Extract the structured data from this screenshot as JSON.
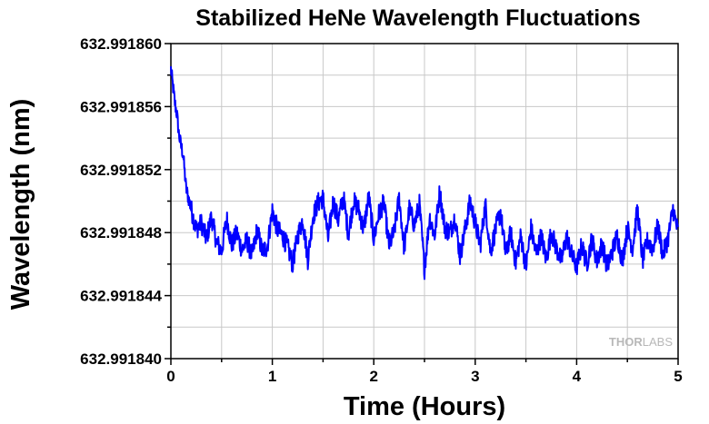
{
  "chart_data": {
    "type": "line",
    "title": "Stabilized HeNe Wavelength Fluctuations",
    "xlabel": "Time (Hours)",
    "ylabel": "Wavelength (nm)",
    "xlim": [
      0,
      5
    ],
    "ylim": [
      632.99184,
      632.99186
    ],
    "xticks": [
      "0",
      "1",
      "2",
      "3",
      "4",
      "5"
    ],
    "yticks": [
      "632.991840",
      "632.991844",
      "632.991848",
      "632.991852",
      "632.991856",
      "632.991860"
    ],
    "grid": true,
    "series_color": "#0000ff",
    "watermark": "THORLABS",
    "series": [
      {
        "x": [
          0,
          0.02,
          0.04,
          0.06,
          0.08,
          0.1,
          0.12,
          0.15,
          0.2,
          0.25,
          0.3,
          0.35,
          0.4,
          0.45,
          0.5,
          0.55,
          0.6,
          0.65,
          0.7,
          0.75,
          0.8,
          0.85,
          0.9,
          0.95,
          1.0,
          1.05,
          1.1,
          1.15,
          1.2,
          1.25,
          1.3,
          1.35,
          1.4,
          1.45,
          1.5,
          1.55,
          1.6,
          1.65,
          1.7,
          1.75,
          1.8,
          1.85,
          1.9,
          1.95,
          2.0,
          2.05,
          2.1,
          2.15,
          2.2,
          2.25,
          2.3,
          2.35,
          2.4,
          2.45,
          2.5,
          2.55,
          2.6,
          2.65,
          2.7,
          2.75,
          2.8,
          2.85,
          2.9,
          2.95,
          3.0,
          3.05,
          3.1,
          3.15,
          3.2,
          3.25,
          3.3,
          3.35,
          3.4,
          3.45,
          3.5,
          3.55,
          3.6,
          3.65,
          3.7,
          3.75,
          3.8,
          3.85,
          3.9,
          3.95,
          4.0,
          4.05,
          4.1,
          4.15,
          4.2,
          4.25,
          4.3,
          4.35,
          4.4,
          4.45,
          4.5,
          4.55,
          4.6,
          4.65,
          4.7,
          4.75,
          4.8,
          4.85,
          4.9,
          4.95,
          5.0
        ],
        "values": [
          632.9918584,
          632.9918573,
          632.9918562,
          632.9918555,
          632.9918542,
          632.9918535,
          632.991853,
          632.9918508,
          632.9918495,
          632.9918482,
          632.9918486,
          632.9918476,
          632.991849,
          632.9918474,
          632.9918468,
          632.9918489,
          632.9918472,
          632.991848,
          632.9918469,
          632.9918475,
          632.9918465,
          632.9918482,
          632.9918468,
          632.9918471,
          632.9918494,
          632.9918482,
          632.9918478,
          632.9918471,
          632.991846,
          632.9918478,
          632.9918488,
          632.9918463,
          632.991849,
          632.9918499,
          632.9918502,
          632.9918476,
          632.99185,
          632.9918488,
          632.9918503,
          632.9918479,
          632.99185,
          632.9918495,
          632.9918482,
          632.9918503,
          632.9918476,
          632.9918492,
          632.9918499,
          632.9918472,
          632.991848,
          632.9918502,
          632.991847,
          632.9918495,
          632.9918485,
          632.9918498,
          632.9918457,
          632.991849,
          632.9918478,
          632.9918506,
          632.9918483,
          632.991848,
          632.991849,
          632.9918465,
          632.9918482,
          632.99185,
          632.9918486,
          632.9918472,
          632.9918498,
          632.9918468,
          632.9918482,
          632.9918493,
          632.9918466,
          632.991848,
          632.9918461,
          632.9918478,
          632.9918458,
          632.9918483,
          632.9918466,
          632.9918478,
          632.9918463,
          632.991848,
          632.991847,
          632.9918462,
          632.9918478,
          632.9918466,
          632.9918458,
          632.9918472,
          632.991846,
          632.9918476,
          632.9918462,
          632.9918473,
          632.9918458,
          632.9918468,
          632.9918478,
          632.9918462,
          632.9918483,
          632.991847,
          632.9918495,
          632.9918462,
          632.9918475,
          632.991847,
          632.9918484,
          632.9918466,
          632.9918476,
          632.9918495,
          632.991848
        ]
      }
    ]
  }
}
